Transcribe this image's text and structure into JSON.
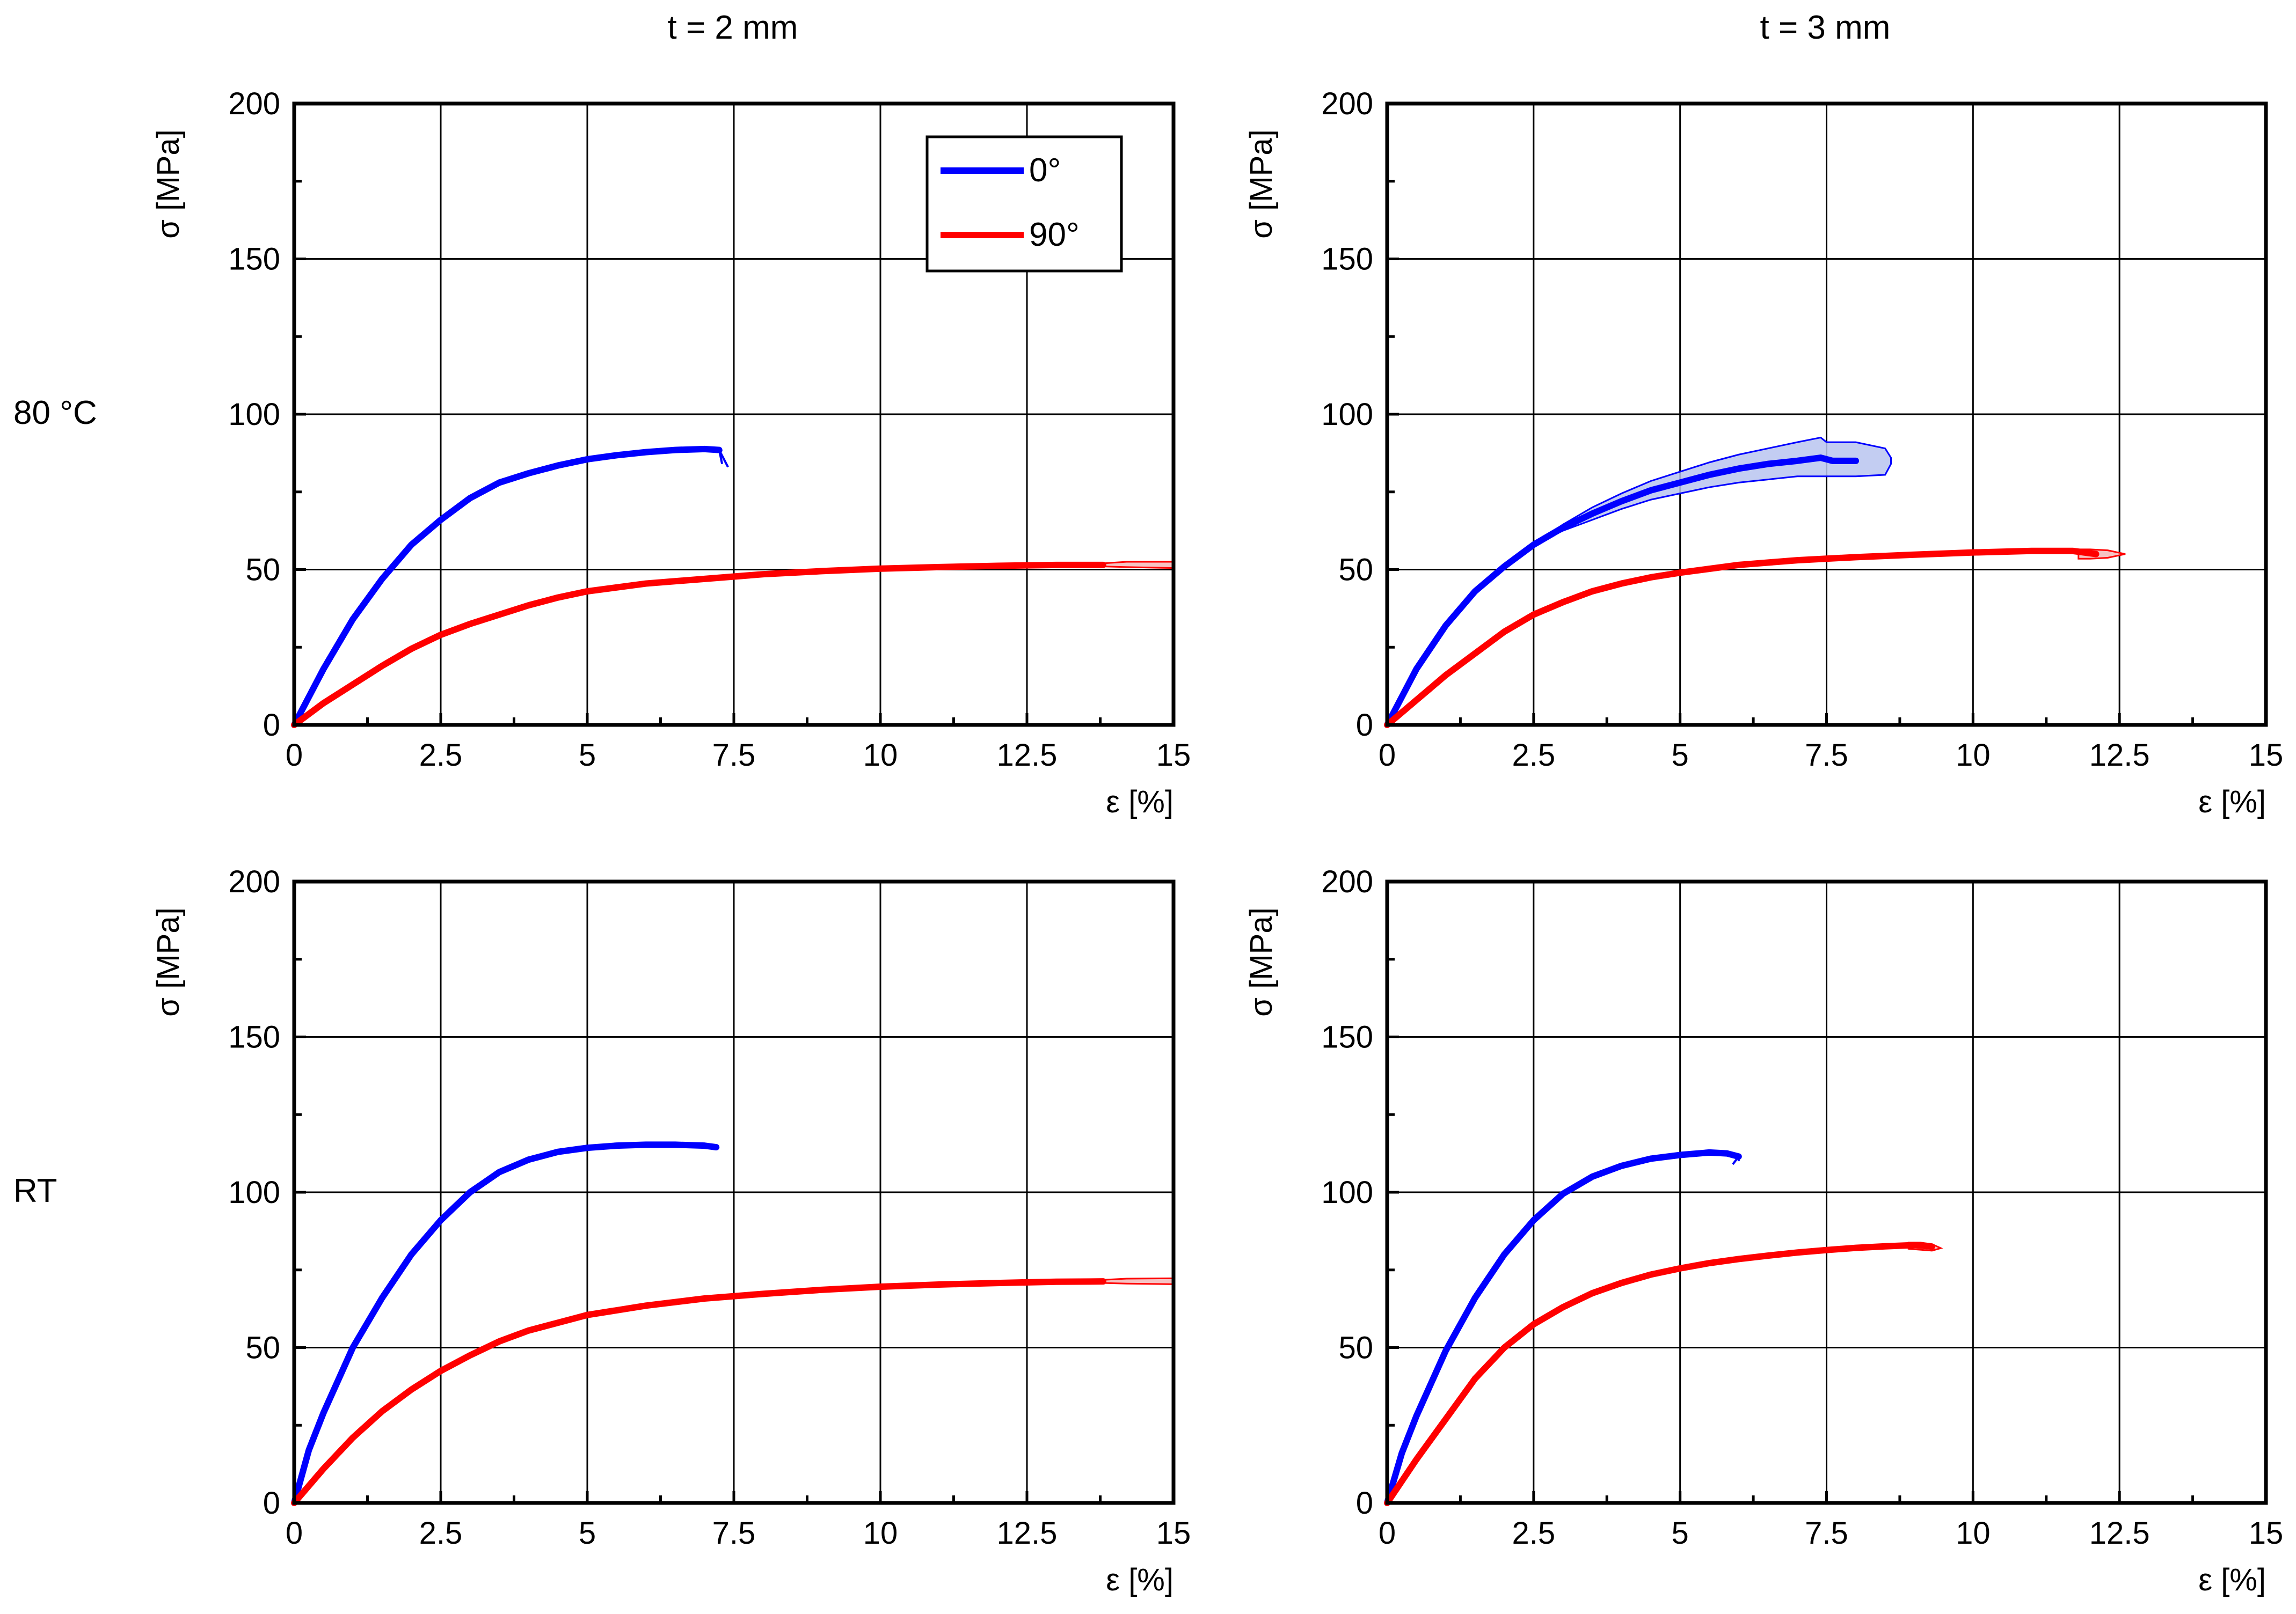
{
  "column_titles": [
    "t = 2 mm",
    "t = 3 mm"
  ],
  "row_titles": [
    "80 °C",
    "RT"
  ],
  "legend": {
    "items": [
      {
        "label": "0°",
        "color": "#0000ff"
      },
      {
        "label": "90°",
        "color": "#ff0000"
      }
    ]
  },
  "colors": {
    "blue": "#0000ff",
    "red": "#ff0000",
    "band_blue": "#b8c4f0",
    "band_red": "#f5b8b8"
  },
  "chart_data": [
    {
      "type": "line",
      "panel": "80 °C, t = 2 mm",
      "xlabel": "ε [%]",
      "ylabel": "σ [MPa]",
      "xlim": [
        0,
        15
      ],
      "ylim": [
        0,
        200
      ],
      "xticks": [
        "0",
        "2.5",
        "5",
        "7.5",
        "10",
        "12.5",
        "15"
      ],
      "yticks": [
        "0",
        "50",
        "100",
        "150",
        "200"
      ],
      "grid": true,
      "legend_position": "top-right",
      "series": [
        {
          "name": "0°",
          "color": "#0000ff",
          "x": [
            0,
            0.5,
            1.0,
            1.5,
            2.0,
            2.5,
            3.0,
            3.5,
            4.0,
            4.5,
            5.0,
            5.5,
            6.0,
            6.5,
            7.0,
            7.25
          ],
          "y": [
            0,
            18,
            34,
            47,
            58,
            66,
            73,
            78,
            81,
            83.5,
            85.5,
            86.8,
            87.8,
            88.5,
            88.8,
            88.5
          ],
          "end_x": [
            7.3,
            7.3,
            7.4
          ],
          "end_y": [
            88,
            84,
            83
          ]
        },
        {
          "name": "90°",
          "color": "#ff0000",
          "x": [
            0,
            0.5,
            1,
            1.5,
            2,
            2.5,
            3,
            3.5,
            4,
            4.5,
            5,
            6,
            7,
            8,
            9,
            10,
            11,
            12,
            13,
            13.8
          ],
          "y": [
            0,
            7,
            13,
            19,
            24.5,
            29,
            32.5,
            35.5,
            38.5,
            41,
            43,
            45.5,
            47,
            48.5,
            49.5,
            50.3,
            50.8,
            51.2,
            51.5,
            51.5
          ],
          "band_x": [
            13.8,
            14.2,
            15
          ],
          "band_upper": [
            52,
            52.5,
            52.5
          ],
          "band_lower": [
            51,
            50.8,
            50.5
          ]
        }
      ]
    },
    {
      "type": "line",
      "panel": "80 °C, t = 3 mm",
      "xlabel": "ε [%]",
      "ylabel": "σ [MPa]",
      "xlim": [
        0,
        15
      ],
      "ylim": [
        0,
        200
      ],
      "xticks": [
        "0",
        "2.5",
        "5",
        "7.5",
        "10",
        "12.5",
        "15"
      ],
      "yticks": [
        "0",
        "50",
        "100",
        "150",
        "200"
      ],
      "grid": true,
      "series": [
        {
          "name": "0°",
          "color": "#0000ff",
          "x": [
            0,
            0.5,
            1,
            1.5,
            2,
            2.5,
            3,
            3.5,
            4,
            4.5,
            5,
            5.5,
            6,
            6.5,
            7,
            7.4,
            7.6,
            8
          ],
          "y": [
            0,
            18,
            32,
            43,
            51,
            58,
            63.5,
            68,
            72,
            75.5,
            78,
            80.5,
            82.5,
            84,
            85,
            86,
            85,
            85
          ],
          "band_x": [
            2.5,
            3,
            3.5,
            4,
            4.5,
            5,
            5.5,
            6,
            6.5,
            7,
            7.4,
            7.5,
            8,
            8.5,
            8.6
          ],
          "band_upper": [
            58,
            64.5,
            70,
            74.5,
            78.5,
            81.5,
            84.5,
            87,
            89,
            91,
            92.5,
            91,
            91,
            89,
            86
          ],
          "band_lower": [
            58,
            62.5,
            66,
            69.5,
            72.5,
            74.5,
            76.5,
            78,
            79,
            80,
            80,
            80,
            80,
            80.5,
            84
          ]
        },
        {
          "name": "90°",
          "color": "#ff0000",
          "x": [
            0,
            0.5,
            1,
            1.5,
            2,
            2.5,
            3,
            3.5,
            4,
            4.5,
            5,
            6,
            7,
            8,
            9,
            10,
            11,
            11.7,
            12.1
          ],
          "y": [
            0,
            8,
            16,
            23,
            30,
            35.5,
            39.5,
            43,
            45.5,
            47.5,
            49,
            51.5,
            53,
            54,
            54.8,
            55.5,
            56,
            56,
            55
          ],
          "band_x": [
            11.8,
            12,
            12.3,
            12.6
          ],
          "band_upper": [
            56.5,
            56.5,
            56.2,
            55
          ],
          "band_lower": [
            53.5,
            53.5,
            53.8,
            55
          ]
        }
      ]
    },
    {
      "type": "line",
      "panel": "RT, t = 2 mm",
      "xlabel": "ε [%]",
      "ylabel": "σ [MPa]",
      "xlim": [
        0,
        15
      ],
      "ylim": [
        0,
        200
      ],
      "xticks": [
        "0",
        "2.5",
        "5",
        "7.5",
        "10",
        "12.5",
        "15"
      ],
      "yticks": [
        "0",
        "50",
        "100",
        "150",
        "200"
      ],
      "grid": true,
      "series": [
        {
          "name": "0°",
          "color": "#0000ff",
          "x": [
            0,
            0.25,
            0.5,
            1,
            1.5,
            2,
            2.5,
            3,
            3.5,
            4,
            4.5,
            5,
            5.5,
            6,
            6.5,
            7,
            7.2
          ],
          "y": [
            0,
            17,
            29,
            50,
            66,
            80,
            91,
            100,
            106.5,
            110.5,
            113,
            114.3,
            115,
            115.3,
            115.3,
            115,
            114.5
          ]
        },
        {
          "name": "90°",
          "color": "#ff0000",
          "x": [
            0,
            0.5,
            1,
            1.5,
            2,
            2.5,
            3,
            3.5,
            4,
            4.5,
            5,
            6,
            7,
            8,
            9,
            10,
            11,
            12,
            13,
            13.8
          ],
          "y": [
            0,
            11,
            21,
            29.5,
            36.5,
            42.5,
            47.5,
            52,
            55.5,
            58,
            60.5,
            63.5,
            65.8,
            67.3,
            68.6,
            69.6,
            70.3,
            70.8,
            71.2,
            71.3
          ],
          "band_x": [
            13.8,
            14.2,
            15
          ],
          "band_upper": [
            71.8,
            72.2,
            72.3
          ],
          "band_lower": [
            70.8,
            70.6,
            70.4
          ]
        }
      ]
    },
    {
      "type": "line",
      "panel": "RT, t = 3 mm",
      "xlabel": "ε [%]",
      "ylabel": "σ [MPa]",
      "xlim": [
        0,
        15
      ],
      "ylim": [
        0,
        200
      ],
      "xticks": [
        "0",
        "2.5",
        "5",
        "7.5",
        "10",
        "12.5",
        "15"
      ],
      "yticks": [
        "0",
        "50",
        "100",
        "150",
        "200"
      ],
      "grid": true,
      "series": [
        {
          "name": "0°",
          "color": "#0000ff",
          "x": [
            0,
            0.25,
            0.5,
            1,
            1.5,
            2,
            2.5,
            3,
            3.5,
            4,
            4.5,
            5,
            5.5,
            5.8,
            6
          ],
          "y": [
            0,
            16,
            28,
            49,
            66,
            80,
            91,
            99.5,
            105,
            108.5,
            110.8,
            112,
            112.8,
            112.5,
            111.5
          ],
          "end_x": [
            5.9,
            5.9,
            6.0
          ],
          "end_y": [
            112,
            109,
            110
          ]
        },
        {
          "name": "90°",
          "color": "#ff0000",
          "x": [
            0,
            0.5,
            1,
            1.5,
            2,
            2.5,
            3,
            3.5,
            4,
            4.5,
            5,
            5.5,
            6,
            6.5,
            7,
            7.5,
            8,
            8.5,
            9,
            9.3
          ],
          "y": [
            0,
            14,
            27,
            40,
            50,
            57.5,
            63,
            67.5,
            70.8,
            73.5,
            75.5,
            77.2,
            78.5,
            79.6,
            80.6,
            81.4,
            82.1,
            82.6,
            83,
            82.5
          ],
          "band_x": [
            8.9,
            9.1,
            9.3,
            9.45
          ],
          "band_upper": [
            83.8,
            83.8,
            83.3,
            82
          ],
          "band_lower": [
            81.8,
            81.5,
            81.2,
            82
          ]
        }
      ]
    }
  ]
}
